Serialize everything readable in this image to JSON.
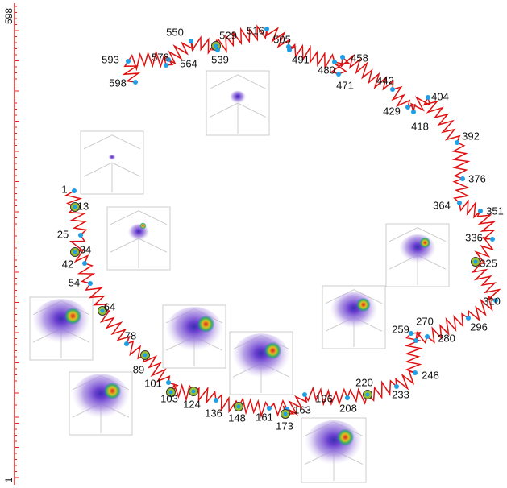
{
  "axis": {
    "top": "598",
    "bottom": "1"
  },
  "points": [
    {
      "label": "1"
    },
    {
      "label": "13"
    },
    {
      "label": "25"
    },
    {
      "label": "34"
    },
    {
      "label": "42"
    },
    {
      "label": "54"
    },
    {
      "label": "64"
    },
    {
      "label": "78"
    },
    {
      "label": "89"
    },
    {
      "label": "101"
    },
    {
      "label": "103"
    },
    {
      "label": "124"
    },
    {
      "label": "136"
    },
    {
      "label": "148"
    },
    {
      "label": "161"
    },
    {
      "label": "163"
    },
    {
      "label": "173"
    },
    {
      "label": "196"
    },
    {
      "label": "208"
    },
    {
      "label": "220"
    },
    {
      "label": "233"
    },
    {
      "label": "248"
    },
    {
      "label": "259"
    },
    {
      "label": "270"
    },
    {
      "label": "280"
    },
    {
      "label": "296"
    },
    {
      "label": "310"
    },
    {
      "label": "325"
    },
    {
      "label": "336"
    },
    {
      "label": "351"
    },
    {
      "label": "364"
    },
    {
      "label": "376"
    },
    {
      "label": "392"
    },
    {
      "label": "404"
    },
    {
      "label": "418"
    },
    {
      "label": "429"
    },
    {
      "label": "442"
    },
    {
      "label": "458"
    },
    {
      "label": "471"
    },
    {
      "label": "480"
    },
    {
      "label": "491"
    },
    {
      "label": "505"
    },
    {
      "label": "516"
    },
    {
      "label": "529"
    },
    {
      "label": "539"
    },
    {
      "label": "550"
    },
    {
      "label": "564"
    },
    {
      "label": "578"
    },
    {
      "label": "593"
    },
    {
      "label": "598"
    }
  ]
}
